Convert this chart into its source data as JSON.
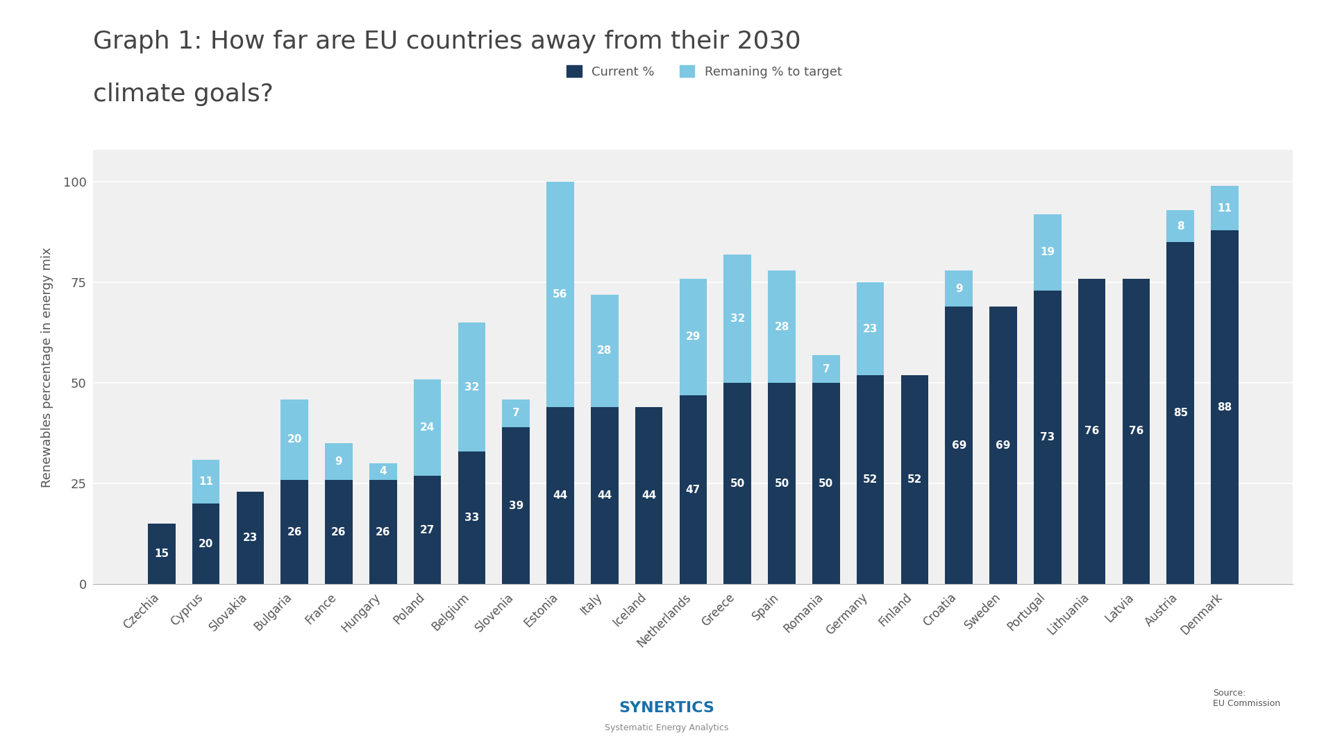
{
  "title_line1": "Graph 1: How far are EU countries away from their 2030",
  "title_line2": "climate goals?",
  "ylabel": "Renewables percentage in energy mix",
  "legend_labels": [
    "Current %",
    "Remaning % to target"
  ],
  "dark_color": "#1b3a5c",
  "light_color": "#7ec8e3",
  "background_color": "#f5f5f5",
  "countries": [
    "Czechia",
    "Cyprus",
    "Slovakia",
    "Bulgaria",
    "France",
    "Hungary",
    "Poland",
    "Belgium",
    "Slovenia",
    "Estonia",
    "Italy",
    "Iceland",
    "Netherlands",
    "Greece",
    "Spain",
    "Romania",
    "Germany",
    "Finland",
    "Croatia",
    "Sweden",
    "Portugal",
    "Lithuania",
    "Latvia",
    "Austria",
    "Denmark"
  ],
  "current": [
    15,
    20,
    23,
    26,
    26,
    26,
    27,
    33,
    39,
    44,
    44,
    44,
    47,
    50,
    50,
    50,
    52,
    52,
    69,
    69,
    73,
    76,
    76,
    85,
    88
  ],
  "remaining": [
    0,
    11,
    0,
    20,
    9,
    4,
    24,
    32,
    7,
    56,
    28,
    0,
    29,
    32,
    28,
    7,
    23,
    0,
    9,
    0,
    19,
    0,
    0,
    8,
    11
  ],
  "ylim": [
    0,
    108
  ],
  "yticks": [
    0,
    25,
    50,
    75,
    100
  ]
}
